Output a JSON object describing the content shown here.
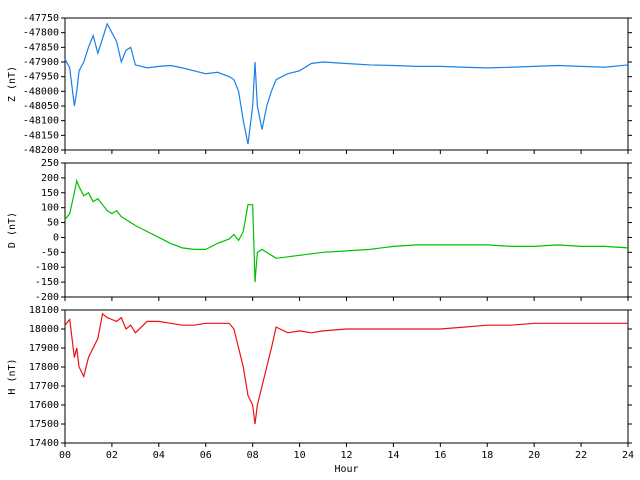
{
  "chart_data": [
    {
      "type": "line",
      "ylabel": "Z (nT)",
      "color": "#1a80e8",
      "x": [
        0,
        0.2,
        0.4,
        0.5,
        0.6,
        0.8,
        1,
        1.2,
        1.4,
        1.6,
        1.8,
        2,
        2.2,
        2.4,
        2.6,
        2.8,
        3,
        3.5,
        4,
        4.5,
        5,
        5.5,
        6,
        6.5,
        7,
        7.2,
        7.4,
        7.6,
        7.8,
        8,
        8.1,
        8.2,
        8.4,
        8.6,
        8.8,
        9,
        9.5,
        10,
        10.5,
        11,
        12,
        13,
        14,
        15,
        16,
        17,
        18,
        19,
        20,
        21,
        22,
        23,
        24
      ],
      "values": [
        -47890,
        -47920,
        -48050,
        -48000,
        -47930,
        -47900,
        -47850,
        -47810,
        -47870,
        -47820,
        -47770,
        -47800,
        -47830,
        -47900,
        -47860,
        -47850,
        -47910,
        -47920,
        -47915,
        -47912,
        -47920,
        -47930,
        -47940,
        -47935,
        -47950,
        -47960,
        -48000,
        -48100,
        -48180,
        -48050,
        -47900,
        -48050,
        -48130,
        -48050,
        -48000,
        -47960,
        -47940,
        -47930,
        -47905,
        -47900,
        -47905,
        -47910,
        -47912,
        -47915,
        -47915,
        -47918,
        -47920,
        -47918,
        -47915,
        -47912,
        -47915,
        -47918,
        -47910
      ],
      "xlim": [
        0,
        24
      ],
      "ylim": [
        -48200,
        -47750
      ],
      "yticks": [
        -48200,
        -48150,
        -48100,
        -48050,
        -48000,
        -47950,
        -47900,
        -47850,
        -47800,
        -47750
      ]
    },
    {
      "type": "line",
      "ylabel": "D (nT)",
      "color": "#00c000",
      "x": [
        0,
        0.2,
        0.4,
        0.5,
        0.6,
        0.8,
        1,
        1.2,
        1.4,
        1.6,
        1.8,
        2,
        2.2,
        2.4,
        2.6,
        2.8,
        3,
        3.5,
        4,
        4.5,
        5,
        5.5,
        6,
        6.5,
        7,
        7.2,
        7.4,
        7.6,
        7.8,
        8,
        8.1,
        8.2,
        8.4,
        8.6,
        8.8,
        9,
        9.5,
        10,
        10.5,
        11,
        12,
        13,
        14,
        15,
        16,
        17,
        18,
        19,
        20,
        21,
        22,
        23,
        24
      ],
      "values": [
        60,
        80,
        150,
        190,
        170,
        140,
        150,
        120,
        130,
        110,
        90,
        80,
        90,
        70,
        60,
        50,
        40,
        20,
        0,
        -20,
        -35,
        -40,
        -40,
        -20,
        -5,
        10,
        -10,
        20,
        110,
        110,
        -150,
        -50,
        -40,
        -50,
        -60,
        -70,
        -65,
        -60,
        -55,
        -50,
        -45,
        -40,
        -30,
        -25,
        -25,
        -25,
        -25,
        -30,
        -30,
        -25,
        -30,
        -30,
        -35
      ],
      "xlim": [
        0,
        24
      ],
      "ylim": [
        -200,
        250
      ],
      "yticks": [
        -200,
        -150,
        -100,
        -50,
        0,
        50,
        100,
        150,
        200,
        250
      ]
    },
    {
      "type": "line",
      "ylabel": "H (nT)",
      "xlabel": "Hour",
      "color": "#ee1111",
      "x": [
        0,
        0.2,
        0.4,
        0.5,
        0.6,
        0.8,
        1,
        1.2,
        1.4,
        1.6,
        1.8,
        2,
        2.2,
        2.4,
        2.6,
        2.8,
        3,
        3.5,
        4,
        4.5,
        5,
        5.5,
        6,
        6.5,
        7,
        7.2,
        7.4,
        7.6,
        7.8,
        8,
        8.1,
        8.2,
        8.4,
        8.6,
        8.8,
        9,
        9.5,
        10,
        10.5,
        11,
        12,
        13,
        14,
        15,
        16,
        17,
        18,
        19,
        20,
        21,
        22,
        23,
        24
      ],
      "values": [
        18020,
        18050,
        17850,
        17900,
        17800,
        17750,
        17850,
        17900,
        17950,
        18080,
        18060,
        18050,
        18040,
        18060,
        18000,
        18020,
        17980,
        18040,
        18040,
        18030,
        18020,
        18020,
        18030,
        18030,
        18030,
        18000,
        17900,
        17800,
        17650,
        17600,
        17500,
        17600,
        17700,
        17800,
        17900,
        18010,
        17980,
        17990,
        17980,
        17990,
        18000,
        18000,
        18000,
        18000,
        18000,
        18010,
        18020,
        18020,
        18030,
        18030,
        18030,
        18030,
        18030
      ],
      "xlim": [
        0,
        24
      ],
      "ylim": [
        17400,
        18100
      ],
      "yticks": [
        17400,
        17500,
        17600,
        17700,
        17800,
        17900,
        18000,
        18100
      ],
      "xticks": [
        {
          "value": 0,
          "label": "00"
        },
        {
          "value": 2,
          "label": "02"
        },
        {
          "value": 4,
          "label": "04"
        },
        {
          "value": 6,
          "label": "06"
        },
        {
          "value": 8,
          "label": "08"
        },
        {
          "value": 10,
          "label": "10"
        },
        {
          "value": 12,
          "label": "12"
        },
        {
          "value": 14,
          "label": "14"
        },
        {
          "value": 16,
          "label": "16"
        },
        {
          "value": 18,
          "label": "18"
        },
        {
          "value": 20,
          "label": "20"
        },
        {
          "value": 22,
          "label": "22"
        },
        {
          "value": 24,
          "label": "24"
        }
      ]
    }
  ]
}
